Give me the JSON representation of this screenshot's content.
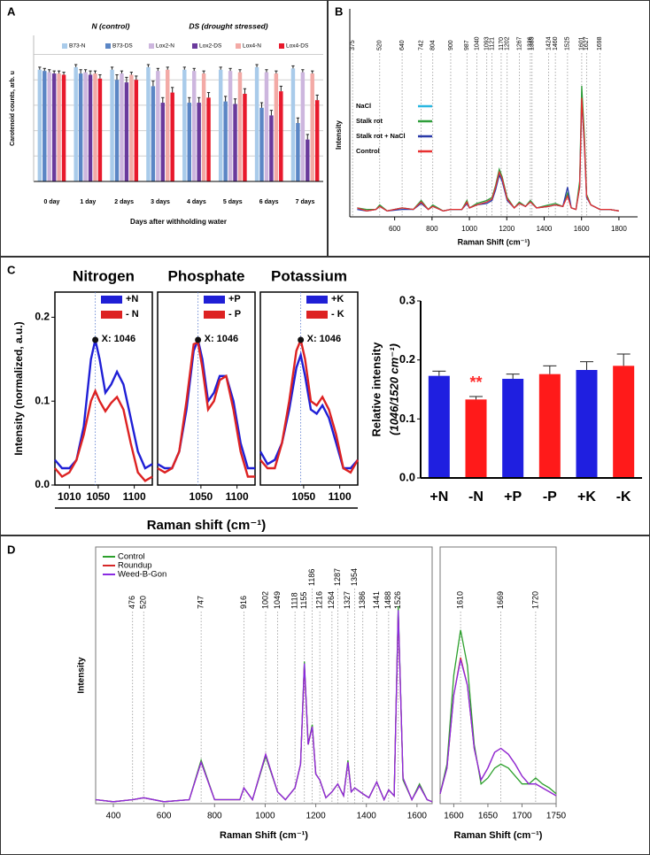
{
  "chart_data": [
    {
      "panel": "A",
      "type": "bar",
      "annotations": [
        "N (control)",
        "DS (drought stressed)"
      ],
      "ylabel": "Carotenoid counts, arb. u",
      "xlabel": "Days after withholding water",
      "categories": [
        "0 day",
        "1 day",
        "2 days",
        "3 days",
        "4 days",
        "5 days",
        "6 days",
        "7 days"
      ],
      "series": [
        {
          "name": "B73-N",
          "color": "#a9cbea",
          "values": [
            0.88,
            0.9,
            0.88,
            0.9,
            0.88,
            0.88,
            0.9,
            0.89
          ],
          "errors": [
            0.02,
            0.02,
            0.02,
            0.02,
            0.02,
            0.02,
            0.02,
            0.02
          ]
        },
        {
          "name": "B73-DS",
          "color": "#5b86c5",
          "values": [
            0.87,
            0.85,
            0.8,
            0.75,
            0.62,
            0.63,
            0.58,
            0.46
          ],
          "errors": [
            0.02,
            0.03,
            0.04,
            0.04,
            0.04,
            0.04,
            0.04,
            0.04
          ]
        },
        {
          "name": "Lox2-N",
          "color": "#cdb6de",
          "values": [
            0.86,
            0.86,
            0.85,
            0.87,
            0.87,
            0.87,
            0.86,
            0.86
          ],
          "errors": [
            0.02,
            0.02,
            0.02,
            0.02,
            0.02,
            0.02,
            0.02,
            0.02
          ]
        },
        {
          "name": "Lox2-DS",
          "color": "#6a3a9c",
          "values": [
            0.85,
            0.84,
            0.78,
            0.62,
            0.62,
            0.61,
            0.52,
            0.33
          ],
          "errors": [
            0.02,
            0.03,
            0.04,
            0.04,
            0.04,
            0.04,
            0.04,
            0.04
          ]
        },
        {
          "name": "Lox4-N",
          "color": "#f3aaa6",
          "values": [
            0.85,
            0.85,
            0.84,
            0.88,
            0.85,
            0.86,
            0.85,
            0.85
          ],
          "errors": [
            0.02,
            0.02,
            0.02,
            0.02,
            0.02,
            0.02,
            0.02,
            0.02
          ]
        },
        {
          "name": "Lox4-DS",
          "color": "#e8192c",
          "values": [
            0.84,
            0.81,
            0.8,
            0.7,
            0.66,
            0.69,
            0.71,
            0.64
          ],
          "errors": [
            0.02,
            0.03,
            0.03,
            0.04,
            0.04,
            0.04,
            0.04,
            0.04
          ]
        }
      ],
      "ylim": [
        0,
        1.15
      ],
      "yticks": [
        0,
        0.2,
        0.4,
        0.6,
        0.8,
        1.0
      ],
      "ytick_labels": false,
      "grid": true
    },
    {
      "panel": "B",
      "type": "line",
      "ylabel": "Intensity",
      "xlabel": "Raman Shift (cm⁻¹)",
      "x": [
        400,
        450,
        500,
        520,
        560,
        640,
        700,
        742,
        780,
        804,
        860,
        900,
        960,
        987,
        1000,
        1040,
        1093,
        1121,
        1140,
        1160,
        1175,
        1202,
        1240,
        1267,
        1300,
        1326,
        1360,
        1424,
        1460,
        1500,
        1525,
        1545,
        1570,
        1590,
        1601,
        1615,
        1627,
        1650,
        1698,
        1750,
        1800
      ],
      "series": [
        {
          "name": "NaCl",
          "color": "#29b6e0",
          "values": [
            0.06,
            0.04,
            0.05,
            0.07,
            0.04,
            0.06,
            0.05,
            0.1,
            0.05,
            0.07,
            0.04,
            0.05,
            0.05,
            0.1,
            0.06,
            0.08,
            0.1,
            0.12,
            0.19,
            0.29,
            0.25,
            0.12,
            0.06,
            0.09,
            0.07,
            0.1,
            0.06,
            0.07,
            0.08,
            0.07,
            0.15,
            0.06,
            0.05,
            0.22,
            0.82,
            0.5,
            0.14,
            0.08,
            0.05,
            0.05,
            0.04
          ]
        },
        {
          "name": "Stalk rot",
          "color": "#2e9e3a",
          "values": [
            0.06,
            0.05,
            0.05,
            0.08,
            0.04,
            0.06,
            0.05,
            0.11,
            0.05,
            0.08,
            0.04,
            0.05,
            0.05,
            0.11,
            0.06,
            0.09,
            0.11,
            0.13,
            0.21,
            0.32,
            0.27,
            0.13,
            0.06,
            0.1,
            0.07,
            0.11,
            0.06,
            0.08,
            0.09,
            0.07,
            0.16,
            0.06,
            0.05,
            0.24,
            0.88,
            0.55,
            0.15,
            0.08,
            0.05,
            0.05,
            0.04
          ]
        },
        {
          "name": "Stalk rot + NaCl",
          "color": "#2a3aa8",
          "values": [
            0.05,
            0.04,
            0.05,
            0.07,
            0.04,
            0.05,
            0.05,
            0.09,
            0.05,
            0.07,
            0.04,
            0.05,
            0.05,
            0.09,
            0.06,
            0.08,
            0.09,
            0.11,
            0.18,
            0.28,
            0.24,
            0.11,
            0.06,
            0.09,
            0.07,
            0.1,
            0.06,
            0.07,
            0.08,
            0.07,
            0.2,
            0.06,
            0.05,
            0.2,
            0.78,
            0.48,
            0.13,
            0.08,
            0.05,
            0.05,
            0.04
          ]
        },
        {
          "name": "Control",
          "color": "#e83030",
          "values": [
            0.06,
            0.04,
            0.05,
            0.07,
            0.04,
            0.06,
            0.05,
            0.1,
            0.05,
            0.07,
            0.04,
            0.05,
            0.05,
            0.1,
            0.06,
            0.08,
            0.1,
            0.12,
            0.2,
            0.3,
            0.26,
            0.12,
            0.06,
            0.09,
            0.07,
            0.1,
            0.06,
            0.07,
            0.08,
            0.07,
            0.14,
            0.06,
            0.05,
            0.2,
            0.8,
            0.5,
            0.14,
            0.08,
            0.05,
            0.05,
            0.04
          ]
        }
      ],
      "peaks": [
        375,
        520,
        640,
        742,
        804,
        900,
        987,
        1040,
        1093,
        1121,
        1170,
        1202,
        1267,
        1326,
        1335,
        1424,
        1460,
        1525,
        1601,
        1627,
        1698
      ],
      "xlim": [
        360,
        1900
      ],
      "xticks": [
        600,
        800,
        1000,
        1200,
        1400,
        1600,
        1800
      ],
      "ylim": [
        0,
        1.1
      ],
      "frame": false
    },
    {
      "panel": "C",
      "type": "line",
      "title": "Nitrogen",
      "ylabel": "Intensity (normalized, a.u.)",
      "x": [
        990,
        1000,
        1010,
        1020,
        1030,
        1040,
        1046,
        1052,
        1060,
        1068,
        1076,
        1085,
        1095,
        1105,
        1115,
        1125
      ],
      "series": [
        {
          "name": "+N",
          "color": "#1f1fd6",
          "values": [
            0.03,
            0.02,
            0.02,
            0.03,
            0.07,
            0.15,
            0.173,
            0.15,
            0.11,
            0.12,
            0.135,
            0.12,
            0.08,
            0.04,
            0.02,
            0.025
          ]
        },
        {
          "name": "- N",
          "color": "#dd2222",
          "values": [
            0.02,
            0.01,
            0.015,
            0.03,
            0.06,
            0.1,
            0.112,
            0.1,
            0.088,
            0.098,
            0.105,
            0.09,
            0.05,
            0.015,
            0.005,
            0.01
          ]
        }
      ],
      "marker": {
        "label": "X: 1046",
        "x": 1046,
        "y": 0.173
      },
      "peaks": [
        1046
      ],
      "xlim": [
        990,
        1125
      ],
      "xticks": [
        1010,
        1050,
        1100
      ],
      "ylim": [
        0,
        0.23
      ],
      "yticks": [
        {
          "value": 0,
          "label": "0.0"
        },
        0.1,
        0.2
      ],
      "frame": true
    },
    {
      "type": "line",
      "title": "Phosphate",
      "xlabel": "Raman shift (cm⁻¹)",
      "x": [
        990,
        1000,
        1010,
        1020,
        1030,
        1040,
        1046,
        1052,
        1060,
        1068,
        1076,
        1085,
        1095,
        1105,
        1115,
        1125
      ],
      "series": [
        {
          "name": "+P",
          "color": "#1f1fd6",
          "values": [
            0.025,
            0.02,
            0.02,
            0.04,
            0.09,
            0.16,
            0.173,
            0.15,
            0.1,
            0.11,
            0.13,
            0.13,
            0.1,
            0.05,
            0.02,
            0.02
          ]
        },
        {
          "name": "- P",
          "color": "#dd2222",
          "values": [
            0.02,
            0.015,
            0.02,
            0.04,
            0.1,
            0.168,
            0.17,
            0.14,
            0.09,
            0.1,
            0.125,
            0.13,
            0.09,
            0.04,
            0.01,
            0.01
          ]
        }
      ],
      "marker": {
        "label": "X: 1046",
        "x": 1046,
        "y": 0.173
      },
      "peaks": [
        1046
      ],
      "xlim": [
        990,
        1125
      ],
      "xticks": [
        1050,
        1100
      ],
      "ylim": [
        0,
        0.23
      ],
      "frame": true
    },
    {
      "type": "line",
      "title": "Potassium",
      "x": [
        990,
        1000,
        1010,
        1020,
        1030,
        1040,
        1046,
        1052,
        1060,
        1068,
        1076,
        1085,
        1095,
        1105,
        1115,
        1125
      ],
      "series": [
        {
          "name": "+K",
          "color": "#1f1fd6",
          "values": [
            0.04,
            0.025,
            0.03,
            0.05,
            0.09,
            0.14,
            0.155,
            0.13,
            0.09,
            0.085,
            0.095,
            0.08,
            0.05,
            0.02,
            0.02,
            0.03
          ]
        },
        {
          "name": "- K",
          "color": "#dd2222",
          "values": [
            0.03,
            0.02,
            0.02,
            0.05,
            0.1,
            0.16,
            0.173,
            0.15,
            0.1,
            0.095,
            0.105,
            0.09,
            0.06,
            0.02,
            0.015,
            0.03
          ]
        }
      ],
      "marker": {
        "label": "X: 1046",
        "x": 1046,
        "y": 0.173
      },
      "peaks": [
        1046
      ],
      "xlim": [
        990,
        1125
      ],
      "xticks": [
        1050,
        1100
      ],
      "ylim": [
        0,
        0.23
      ],
      "frame": true
    },
    {
      "type": "bar",
      "ylabel": "Relative intensity",
      "ylabel2": "(1046/1520 cm⁻¹)",
      "categories": [
        "+N",
        "-N",
        "+P",
        "-P",
        "+K",
        "-K"
      ],
      "values": [
        0.173,
        0.133,
        0.168,
        0.176,
        0.183,
        0.19
      ],
      "errors": [
        0.008,
        0.005,
        0.008,
        0.014,
        0.014,
        0.02
      ],
      "colors": [
        "#1f1fe0",
        "#ff1a1a",
        "#1f1fe0",
        "#ff1a1a",
        "#1f1fe0",
        "#ff1a1a"
      ],
      "annotations": [
        {
          "text": "**",
          "category": "-N",
          "color": "#ff2a2a"
        }
      ],
      "ylim": [
        0,
        0.3
      ],
      "yticks": [
        {
          "value": 0,
          "label": "0.0"
        },
        0.1,
        0.2,
        0.3
      ]
    },
    {
      "panel": "D",
      "type": "line",
      "ylabel": "Intensity",
      "xlabel": "Raman Shift (cm⁻¹)",
      "x": [
        330,
        400,
        476,
        520,
        600,
        700,
        747,
        800,
        900,
        916,
        950,
        1002,
        1049,
        1080,
        1118,
        1140,
        1155,
        1170,
        1186,
        1200,
        1216,
        1240,
        1264,
        1287,
        1310,
        1327,
        1340,
        1354,
        1386,
        1410,
        1441,
        1470,
        1488,
        1510,
        1526,
        1545,
        1580,
        1610,
        1640,
        1660
      ],
      "series": [
        {
          "name": "Control",
          "color": "#2ca02c",
          "values": [
            0.02,
            0.01,
            0.02,
            0.03,
            0.01,
            0.02,
            0.22,
            0.02,
            0.02,
            0.08,
            0.02,
            0.24,
            0.06,
            0.02,
            0.08,
            0.2,
            0.72,
            0.3,
            0.4,
            0.15,
            0.12,
            0.03,
            0.06,
            0.1,
            0.04,
            0.22,
            0.06,
            0.08,
            0.05,
            0.03,
            0.11,
            0.02,
            0.07,
            0.04,
            1.0,
            0.12,
            0.02,
            0.1,
            0.02,
            0.01
          ]
        },
        {
          "name": "Roundup",
          "color": "#d62728",
          "values": [
            0.02,
            0.01,
            0.02,
            0.03,
            0.01,
            0.02,
            0.21,
            0.02,
            0.02,
            0.08,
            0.02,
            0.25,
            0.06,
            0.02,
            0.08,
            0.2,
            0.7,
            0.3,
            0.39,
            0.15,
            0.12,
            0.03,
            0.06,
            0.1,
            0.04,
            0.21,
            0.06,
            0.08,
            0.05,
            0.03,
            0.11,
            0.02,
            0.07,
            0.04,
            0.97,
            0.13,
            0.02,
            0.09,
            0.02,
            0.01
          ]
        },
        {
          "name": "Weed-B-Gon",
          "color": "#8a2be2",
          "values": [
            0.02,
            0.01,
            0.02,
            0.03,
            0.01,
            0.02,
            0.21,
            0.02,
            0.02,
            0.08,
            0.02,
            0.25,
            0.06,
            0.02,
            0.08,
            0.2,
            0.71,
            0.3,
            0.39,
            0.15,
            0.12,
            0.03,
            0.06,
            0.1,
            0.04,
            0.21,
            0.06,
            0.08,
            0.05,
            0.03,
            0.11,
            0.02,
            0.07,
            0.04,
            0.98,
            0.13,
            0.02,
            0.09,
            0.02,
            0.01
          ]
        }
      ],
      "peaks": [
        476,
        520,
        747,
        916,
        1002,
        1049,
        1118,
        1155,
        1186,
        1216,
        1264,
        1287,
        1327,
        1354,
        1386,
        1441,
        1488,
        1526
      ],
      "xlim": [
        330,
        1660
      ],
      "xticks": [
        400,
        600,
        800,
        1000,
        1200,
        1400,
        1600
      ],
      "ylim": [
        0,
        1.3
      ],
      "frame": true
    },
    {
      "type": "line",
      "xlabel": "Raman Shift (cm⁻¹)",
      "x": [
        1580,
        1590,
        1600,
        1610,
        1620,
        1630,
        1640,
        1650,
        1660,
        1669,
        1680,
        1690,
        1700,
        1710,
        1720,
        1730,
        1740,
        1750
      ],
      "series": [
        {
          "name": "Control",
          "color": "#2ca02c",
          "values": [
            0.05,
            0.2,
            0.65,
            0.88,
            0.7,
            0.3,
            0.1,
            0.13,
            0.18,
            0.2,
            0.18,
            0.14,
            0.1,
            0.1,
            0.13,
            0.1,
            0.08,
            0.05
          ]
        },
        {
          "name": "Roundup",
          "color": "#d62728",
          "values": [
            0.05,
            0.18,
            0.55,
            0.74,
            0.6,
            0.28,
            0.12,
            0.18,
            0.26,
            0.28,
            0.25,
            0.2,
            0.14,
            0.1,
            0.1,
            0.08,
            0.06,
            0.04
          ]
        },
        {
          "name": "Weed-B-Gon",
          "color": "#8a2be2",
          "values": [
            0.05,
            0.18,
            0.55,
            0.73,
            0.6,
            0.28,
            0.12,
            0.18,
            0.26,
            0.28,
            0.25,
            0.2,
            0.14,
            0.1,
            0.1,
            0.08,
            0.06,
            0.04
          ]
        }
      ],
      "peaks": [
        1610,
        1669,
        1720
      ],
      "xlim": [
        1580,
        1750
      ],
      "xticks": [
        1600,
        1650,
        1700,
        1750
      ],
      "ylim": [
        0,
        1.3
      ],
      "frame": true
    }
  ]
}
